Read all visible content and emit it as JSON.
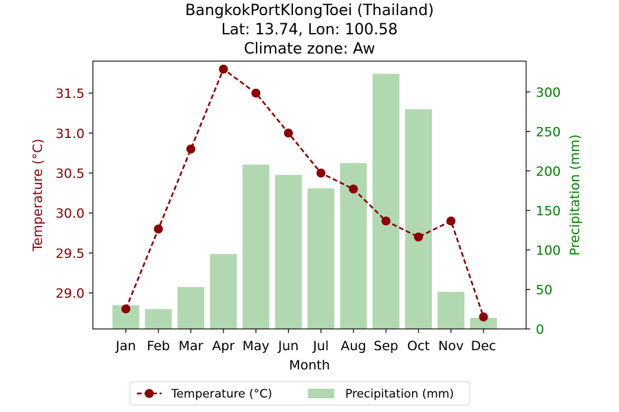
{
  "chart_data": {
    "type": "bar+line",
    "title_lines": [
      "BangkokPortKlongToei (Thailand)",
      "Lat: 13.74, Lon: 100.58",
      "Climate zone: Aw"
    ],
    "xlabel": "Month",
    "categories": [
      "Jan",
      "Feb",
      "Mar",
      "Apr",
      "May",
      "Jun",
      "Jul",
      "Aug",
      "Sep",
      "Oct",
      "Nov",
      "Dec"
    ],
    "series": [
      {
        "name": "Temperature (°C)",
        "type": "line",
        "axis": "left",
        "color": "#8b0000",
        "style": "dashed",
        "values": [
          28.8,
          29.8,
          30.8,
          31.8,
          31.5,
          31.0,
          30.5,
          30.3,
          29.9,
          29.7,
          29.9,
          28.7
        ]
      },
      {
        "name": "Precipitation (mm)",
        "type": "bar",
        "axis": "right",
        "color": "#b2d8b2",
        "values": [
          30,
          25,
          53,
          95,
          208,
          195,
          178,
          210,
          323,
          278,
          47,
          14
        ]
      }
    ],
    "y_left": {
      "label": "Temperature (°C)",
      "range": [
        28.55,
        31.9
      ],
      "ticks": [
        "29.0",
        "29.5",
        "30.0",
        "30.5",
        "31.0",
        "31.5"
      ],
      "color": "#8b0000"
    },
    "y_right": {
      "label": "Precipitation (mm)",
      "range": [
        0,
        339
      ],
      "ticks": [
        "0",
        "50",
        "100",
        "150",
        "200",
        "250",
        "300"
      ],
      "color": "#008000"
    },
    "grid": false,
    "legend_placement": "bottom-center"
  }
}
